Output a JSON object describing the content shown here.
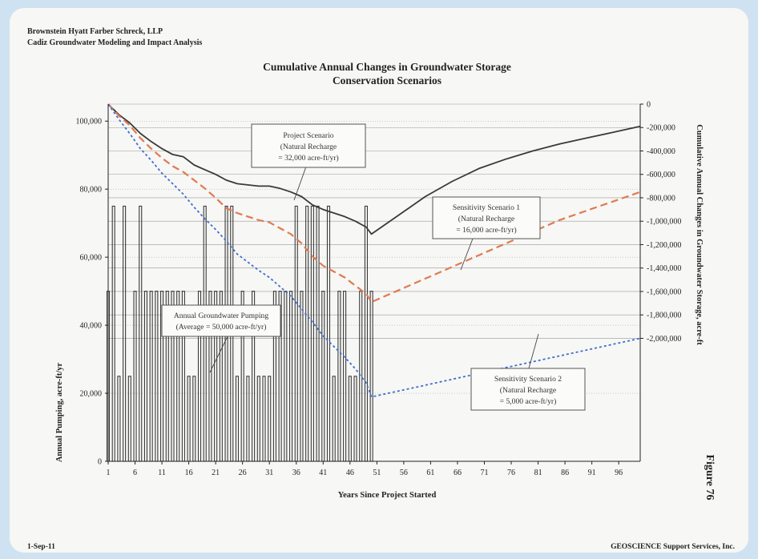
{
  "header": {
    "line1": "Brownstein Hyatt Farber Schreck, LLP",
    "line2": "Cadiz Groundwater Modeling and Impact Analysis"
  },
  "footer": {
    "date": "1-Sep-11",
    "company": "GEOSCIENCE Support Services, Inc.",
    "figure": "Figure 76"
  },
  "annotations": {
    "project": [
      "Project Scenario",
      "(Natural Recharge",
      "= 32,000 acre-ft/yr)"
    ],
    "sens1": [
      "Sensitivity Scenario 1",
      "(Natural Recharge",
      "= 16,000 acre-ft/yr)"
    ],
    "sens2": [
      "Sensitivity Scenario 2",
      "(Natural Recharge",
      "= 5,000 acre-ft/yr)"
    ],
    "pumping": [
      "Annual Groundwater Pumping",
      "(Average = 50,000 acre-ft/yr)"
    ]
  },
  "colors": {
    "project": "#3a3a3a",
    "sens1": "#e07a52",
    "sens2": "#3f6fd0",
    "bars": "#3a3a3a",
    "grid": "#9a9a9a"
  },
  "chart_data": {
    "type": "line",
    "title": "Cumulative Annual Changes in Groundwater Storage",
    "subtitle": "Conservation Scenarios",
    "xlabel": "Years Since Project Started",
    "ylabel_right": "Cumulative Annual Changes in Groundwater Storage, acre-ft",
    "ylabel_left": "Annual Pumping, acre-ft/yr",
    "x_ticks": [
      1,
      6,
      11,
      16,
      21,
      26,
      31,
      36,
      41,
      46,
      51,
      56,
      61,
      66,
      71,
      76,
      81,
      86,
      91,
      96
    ],
    "xlim": [
      1,
      100
    ],
    "y_right_ticks": [
      "0",
      "-200,000",
      "-400,000",
      "-600,000",
      "-800,000",
      "-1,000,000",
      "-1,200,000",
      "-1,400,000",
      "-1,600,000",
      "-1,800,000",
      "-2,000,000"
    ],
    "y_right_values": [
      0,
      -200000,
      -400000,
      -600000,
      -800000,
      -1000000,
      -1200000,
      -1400000,
      -1600000,
      -1800000,
      -2000000
    ],
    "ylim_right": [
      -3050000,
      0
    ],
    "y_left_ticks": [
      "0",
      "20,000",
      "40,000",
      "60,000",
      "80,000",
      "100,000"
    ],
    "y_left_values": [
      0,
      20000,
      40000,
      60000,
      80000,
      100000
    ],
    "ylim_left": [
      0,
      105000
    ],
    "grid": true,
    "series": [
      {
        "name": "Project Scenario",
        "style": "solid",
        "x": [
          1,
          3,
          5,
          7,
          9,
          11,
          13,
          15,
          17,
          19,
          21,
          23,
          25,
          27,
          29,
          31,
          33,
          35,
          37,
          39,
          41,
          43,
          45,
          47,
          49,
          50,
          55,
          60,
          65,
          70,
          75,
          80,
          85,
          90,
          95,
          100
        ],
        "y": [
          0,
          -90000,
          -160000,
          -250000,
          -320000,
          -380000,
          -430000,
          -450000,
          -520000,
          -560000,
          -600000,
          -650000,
          -680000,
          -690000,
          -700000,
          -700000,
          -720000,
          -750000,
          -790000,
          -860000,
          -900000,
          -930000,
          -960000,
          -1000000,
          -1050000,
          -1110000,
          -950000,
          -790000,
          -660000,
          -550000,
          -470000,
          -400000,
          -340000,
          -290000,
          -240000,
          -190000
        ]
      },
      {
        "name": "Sensitivity Scenario 1",
        "style": "dashed",
        "x": [
          1,
          3,
          5,
          7,
          9,
          11,
          13,
          15,
          17,
          19,
          21,
          23,
          25,
          27,
          29,
          31,
          33,
          35,
          37,
          39,
          41,
          43,
          45,
          47,
          49,
          50,
          55,
          60,
          65,
          70,
          75,
          80,
          85,
          90,
          95,
          100
        ],
        "y": [
          0,
          -100000,
          -180000,
          -290000,
          -380000,
          -460000,
          -530000,
          -580000,
          -650000,
          -720000,
          -800000,
          -890000,
          -930000,
          -960000,
          -990000,
          -1010000,
          -1060000,
          -1110000,
          -1190000,
          -1300000,
          -1380000,
          -1430000,
          -1480000,
          -1550000,
          -1620000,
          -1690000,
          -1590000,
          -1490000,
          -1390000,
          -1290000,
          -1190000,
          -1090000,
          -990000,
          -910000,
          -830000,
          -750000
        ]
      },
      {
        "name": "Sensitivity Scenario 2",
        "style": "dotted",
        "x": [
          1,
          3,
          5,
          7,
          9,
          11,
          13,
          15,
          17,
          19,
          21,
          23,
          25,
          27,
          29,
          31,
          33,
          35,
          37,
          39,
          41,
          43,
          45,
          47,
          49,
          50,
          55,
          60,
          65,
          70,
          75,
          80,
          85,
          90,
          95,
          100
        ],
        "y": [
          0,
          -130000,
          -250000,
          -380000,
          -480000,
          -590000,
          -680000,
          -770000,
          -880000,
          -980000,
          -1070000,
          -1170000,
          -1280000,
          -1350000,
          -1420000,
          -1480000,
          -1560000,
          -1640000,
          -1750000,
          -1860000,
          -1980000,
          -2070000,
          -2160000,
          -2260000,
          -2380000,
          -2500000,
          -2450000,
          -2400000,
          -2350000,
          -2300000,
          -2250000,
          -2200000,
          -2150000,
          -2100000,
          -2050000,
          -2000000
        ]
      }
    ],
    "pumping_bars": {
      "name": "Annual Groundwater Pumping",
      "x": [
        1,
        2,
        3,
        4,
        5,
        6,
        7,
        8,
        9,
        10,
        11,
        12,
        13,
        14,
        15,
        16,
        17,
        18,
        19,
        20,
        21,
        22,
        23,
        24,
        25,
        26,
        27,
        28,
        29,
        30,
        31,
        32,
        33,
        34,
        35,
        36,
        37,
        38,
        39,
        40,
        41,
        42,
        43,
        44,
        45,
        46,
        47,
        48,
        49,
        50
      ],
      "values": [
        50000,
        75000,
        25000,
        75000,
        25000,
        50000,
        75000,
        50000,
        50000,
        50000,
        50000,
        50000,
        50000,
        50000,
        50000,
        25000,
        25000,
        50000,
        75000,
        50000,
        50000,
        50000,
        75000,
        75000,
        25000,
        50000,
        25000,
        50000,
        25000,
        25000,
        25000,
        50000,
        50000,
        50000,
        50000,
        75000,
        50000,
        75000,
        75000,
        75000,
        50000,
        75000,
        25000,
        50000,
        50000,
        25000,
        25000,
        50000,
        75000,
        50000
      ]
    }
  }
}
